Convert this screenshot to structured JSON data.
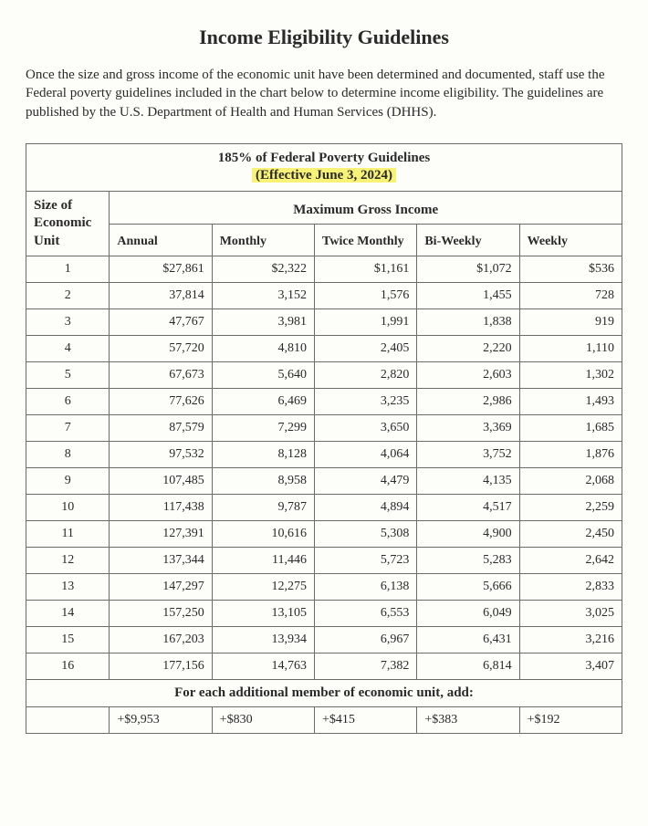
{
  "page": {
    "title": "Income Eligibility Guidelines",
    "intro": "Once the size and gross income of the economic unit have been determined and documented, staff use the Federal poverty guidelines included in the chart below to determine income eligibility. The guidelines are published by the U.S. Department of Health and Human Services (DHHS)."
  },
  "table": {
    "title_line1": "185% of Federal Poverty Guidelines",
    "title_line2": "(Effective June 3, 2024)",
    "highlight_color": "#f8f276",
    "border_color": "#6b6b6b",
    "background_color": "#fdfdfa",
    "font_family": "Times New Roman",
    "title_fontsize_pt": 11,
    "header_fontsize_pt": 11,
    "cell_fontsize_pt": 10,
    "size_header": "Size of Economic Unit",
    "mgi_header": "Maximum Gross Income",
    "columns": [
      "Annual",
      "Monthly",
      "Twice Monthly",
      "Bi-Weekly",
      "Weekly"
    ],
    "column_widths_pct": [
      14,
      17.2,
      17.2,
      17.2,
      17.2,
      17.2
    ],
    "value_align": "right",
    "size_align": "center",
    "rows": [
      {
        "size": "1",
        "annual": "$27,861",
        "monthly": "$2,322",
        "twice_monthly": "$1,161",
        "bi_weekly": "$1,072",
        "weekly": "$536"
      },
      {
        "size": "2",
        "annual": "37,814",
        "monthly": "3,152",
        "twice_monthly": "1,576",
        "bi_weekly": "1,455",
        "weekly": "728"
      },
      {
        "size": "3",
        "annual": "47,767",
        "monthly": "3,981",
        "twice_monthly": "1,991",
        "bi_weekly": "1,838",
        "weekly": "919"
      },
      {
        "size": "4",
        "annual": "57,720",
        "monthly": "4,810",
        "twice_monthly": "2,405",
        "bi_weekly": "2,220",
        "weekly": "1,110"
      },
      {
        "size": "5",
        "annual": "67,673",
        "monthly": "5,640",
        "twice_monthly": "2,820",
        "bi_weekly": "2,603",
        "weekly": "1,302"
      },
      {
        "size": "6",
        "annual": "77,626",
        "monthly": "6,469",
        "twice_monthly": "3,235",
        "bi_weekly": "2,986",
        "weekly": "1,493"
      },
      {
        "size": "7",
        "annual": "87,579",
        "monthly": "7,299",
        "twice_monthly": "3,650",
        "bi_weekly": "3,369",
        "weekly": "1,685"
      },
      {
        "size": "8",
        "annual": "97,532",
        "monthly": "8,128",
        "twice_monthly": "4,064",
        "bi_weekly": "3,752",
        "weekly": "1,876"
      },
      {
        "size": "9",
        "annual": "107,485",
        "monthly": "8,958",
        "twice_monthly": "4,479",
        "bi_weekly": "4,135",
        "weekly": "2,068"
      },
      {
        "size": "10",
        "annual": "117,438",
        "monthly": "9,787",
        "twice_monthly": "4,894",
        "bi_weekly": "4,517",
        "weekly": "2,259"
      },
      {
        "size": "11",
        "annual": "127,391",
        "monthly": "10,616",
        "twice_monthly": "5,308",
        "bi_weekly": "4,900",
        "weekly": "2,450"
      },
      {
        "size": "12",
        "annual": "137,344",
        "monthly": "11,446",
        "twice_monthly": "5,723",
        "bi_weekly": "5,283",
        "weekly": "2,642"
      },
      {
        "size": "13",
        "annual": "147,297",
        "monthly": "12,275",
        "twice_monthly": "6,138",
        "bi_weekly": "5,666",
        "weekly": "2,833"
      },
      {
        "size": "14",
        "annual": "157,250",
        "monthly": "13,105",
        "twice_monthly": "6,553",
        "bi_weekly": "6,049",
        "weekly": "3,025"
      },
      {
        "size": "15",
        "annual": "167,203",
        "monthly": "13,934",
        "twice_monthly": "6,967",
        "bi_weekly": "6,431",
        "weekly": "3,216"
      },
      {
        "size": "16",
        "annual": "177,156",
        "monthly": "14,763",
        "twice_monthly": "7,382",
        "bi_weekly": "6,814",
        "weekly": "3,407"
      }
    ],
    "footer_label": "For each additional member of economic unit, add:",
    "additional": {
      "annual": "+$9,953",
      "monthly": "+$830",
      "twice_monthly": "+$415",
      "bi_weekly": "+$383",
      "weekly": "+$192"
    }
  }
}
